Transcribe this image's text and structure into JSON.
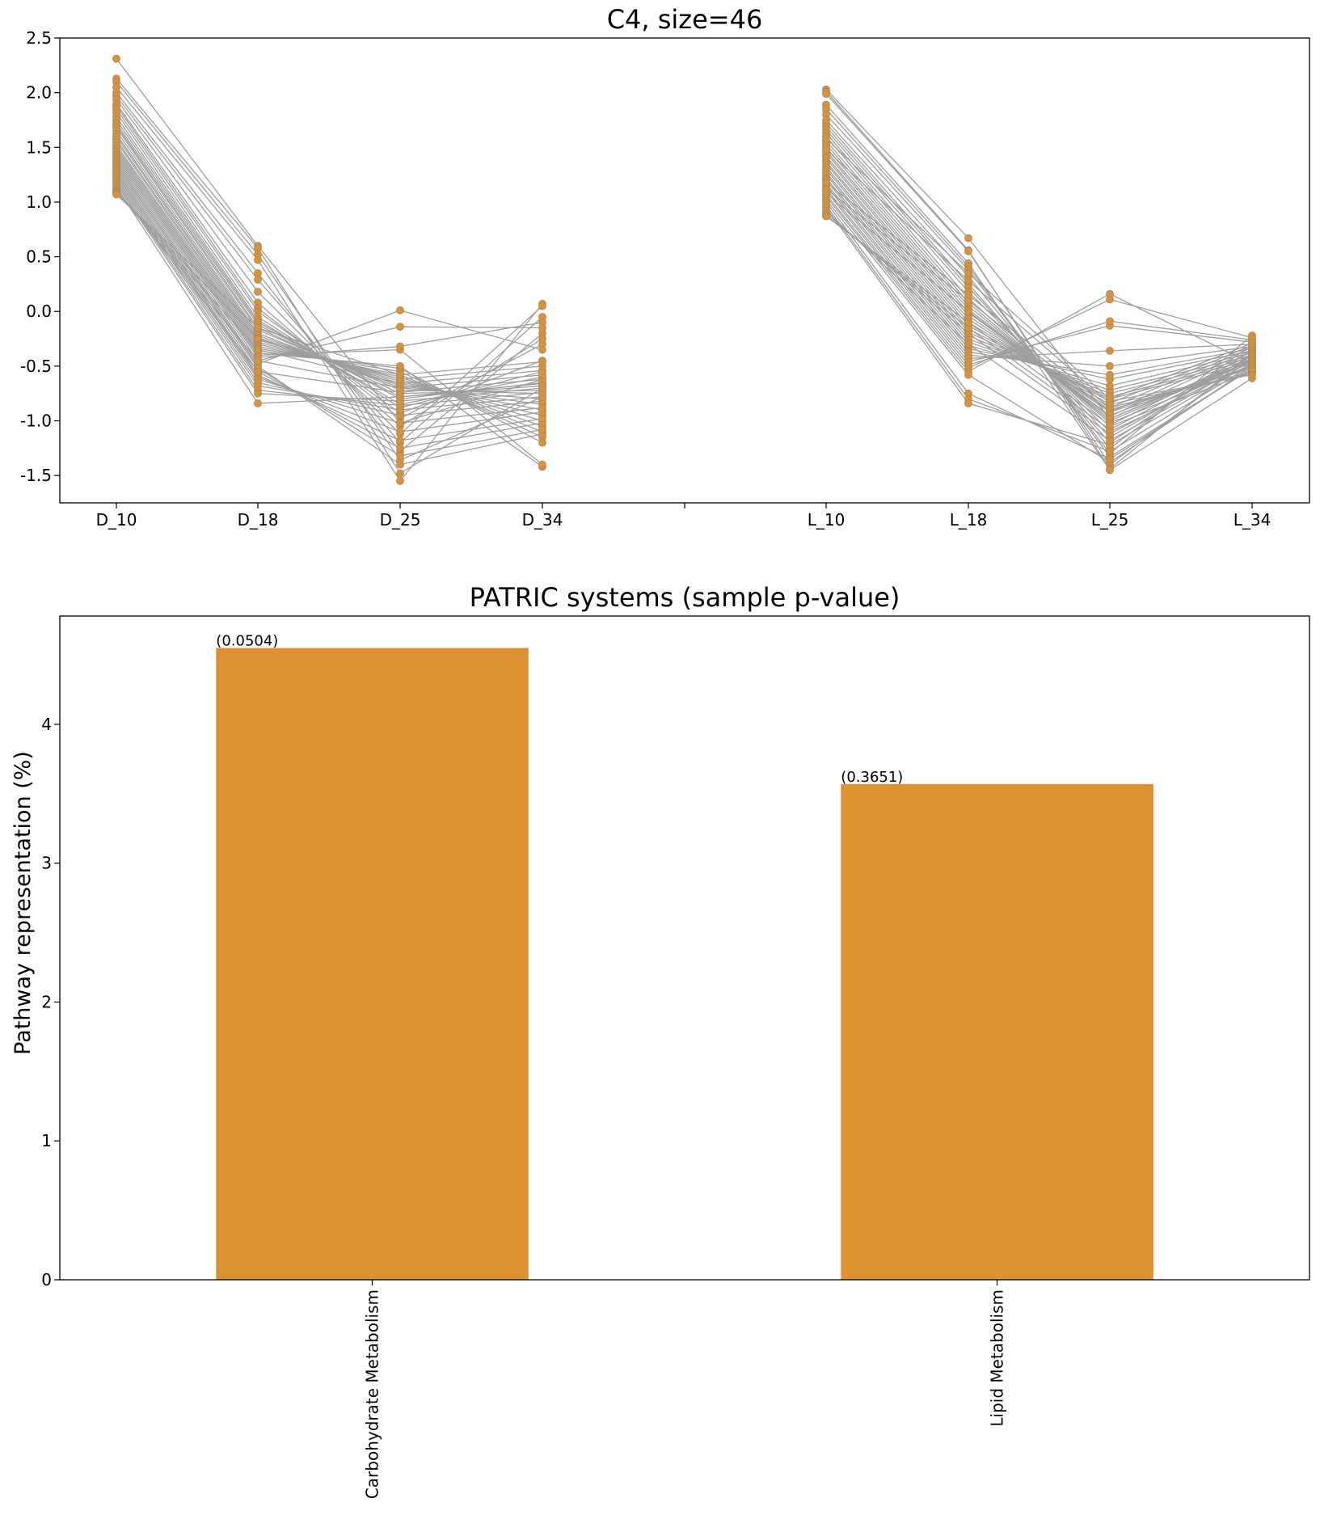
{
  "figure": {
    "colors": {
      "marker": "#dc9230",
      "line": "#9e9e9e",
      "bar": "#dc9230",
      "axes": "#000000"
    }
  },
  "chart_data": [
    {
      "type": "line",
      "title": "C4, size=46",
      "xlabel": "",
      "ylabel": "",
      "categories": [
        "D_10",
        "D_18",
        "D_25",
        "D_34",
        "",
        "L_10",
        "L_18",
        "L_25",
        "L_34"
      ],
      "yticks": [
        "2.5",
        "2.0",
        "1.5",
        "1.0",
        "0.5",
        "0.0",
        "-0.5",
        "-1.0",
        "-1.5"
      ],
      "ylim": [
        -1.75,
        2.5
      ],
      "grid": false,
      "legend": "none",
      "series": [
        {
          "values": [
            2.31,
            0.6,
            -1.02,
            -0.62,
            null,
            2.03,
            0.67,
            -0.98,
            -0.45
          ]
        },
        {
          "values": [
            2.13,
            0.58,
            -1.48,
            -0.7,
            null,
            2.01,
            0.56,
            -1.44,
            -0.38
          ]
        },
        {
          "values": [
            2.1,
            0.52,
            -1.36,
            -0.78,
            null,
            1.99,
            0.55,
            -1.4,
            -0.42
          ]
        },
        {
          "values": [
            2.05,
            0.47,
            -1.55,
            0.07,
            null,
            1.89,
            0.44,
            -1.45,
            -0.61
          ]
        },
        {
          "values": [
            2.0,
            0.35,
            -1.28,
            -0.2,
            null,
            1.85,
            0.41,
            -1.33,
            -0.52
          ]
        },
        {
          "values": [
            1.97,
            0.29,
            -1.2,
            -0.05,
            null,
            1.8,
            0.38,
            -1.3,
            -0.22
          ]
        },
        {
          "values": [
            1.94,
            0.18,
            -1.12,
            0.05,
            null,
            1.75,
            0.32,
            -1.25,
            -0.3
          ]
        },
        {
          "values": [
            1.9,
            0.08,
            -1.05,
            -0.25,
            null,
            1.72,
            0.25,
            -1.2,
            -0.35
          ]
        },
        {
          "values": [
            1.88,
            0.03,
            -0.98,
            -0.3,
            null,
            1.69,
            0.22,
            -1.15,
            -0.4
          ]
        },
        {
          "values": [
            1.85,
            0.0,
            -0.93,
            -0.45,
            null,
            1.66,
            0.18,
            -1.1,
            -0.48
          ]
        },
        {
          "values": [
            1.82,
            -0.05,
            -0.88,
            -0.55,
            null,
            1.63,
            0.12,
            -1.05,
            -0.55
          ]
        },
        {
          "values": [
            1.78,
            -0.08,
            -0.85,
            -0.6,
            null,
            1.6,
            0.08,
            -1.02,
            -0.5
          ]
        },
        {
          "values": [
            1.75,
            -0.1,
            -0.8,
            -0.65,
            null,
            1.56,
            0.05,
            -1.0,
            -0.45
          ]
        },
        {
          "values": [
            1.72,
            -0.12,
            -0.78,
            -0.68,
            null,
            1.53,
            0.02,
            -0.98,
            -0.43
          ]
        },
        {
          "values": [
            1.7,
            -0.15,
            -0.75,
            -0.72,
            null,
            1.5,
            -0.01,
            -0.95,
            -0.47
          ]
        },
        {
          "values": [
            1.68,
            -0.17,
            -0.72,
            -0.75,
            null,
            1.47,
            -0.04,
            -0.92,
            -0.5
          ]
        },
        {
          "values": [
            1.65,
            -0.2,
            -0.7,
            -0.8,
            null,
            1.45,
            -0.07,
            -0.9,
            -0.52
          ]
        },
        {
          "values": [
            1.62,
            -0.22,
            -0.68,
            -0.85,
            null,
            1.42,
            -0.1,
            -0.88,
            -0.55
          ]
        },
        {
          "values": [
            1.6,
            -0.24,
            -0.66,
            -0.9,
            null,
            1.4,
            -0.13,
            -0.85,
            -0.57
          ]
        },
        {
          "values": [
            1.57,
            -0.26,
            -0.64,
            -0.95,
            null,
            1.37,
            -0.16,
            -0.82,
            -0.58
          ]
        },
        {
          "values": [
            1.55,
            -0.28,
            -0.62,
            -1.0,
            null,
            1.35,
            -0.19,
            -0.8,
            -0.46
          ]
        },
        {
          "values": [
            1.52,
            -0.3,
            -0.6,
            -1.05,
            null,
            1.32,
            -0.22,
            -0.78,
            -0.44
          ]
        },
        {
          "values": [
            1.5,
            -0.32,
            -0.58,
            -1.1,
            null,
            1.3,
            -0.25,
            -0.75,
            -0.42
          ]
        },
        {
          "values": [
            1.48,
            -0.34,
            -0.55,
            -1.15,
            null,
            1.27,
            -0.28,
            -0.72,
            -0.4
          ]
        },
        {
          "values": [
            1.46,
            -0.36,
            -0.52,
            -1.2,
            null,
            1.25,
            -0.31,
            -0.68,
            -0.38
          ]
        },
        {
          "values": [
            1.44,
            -0.38,
            -0.5,
            -1.42,
            null,
            1.22,
            -0.34,
            -0.62,
            -0.36
          ]
        },
        {
          "values": [
            1.42,
            -0.4,
            -0.35,
            -1.4,
            null,
            1.2,
            -0.37,
            -0.58,
            -0.34
          ]
        },
        {
          "values": [
            1.4,
            -0.42,
            -0.32,
            -0.1,
            null,
            1.17,
            -0.4,
            -0.5,
            -0.32
          ]
        },
        {
          "values": [
            1.38,
            -0.45,
            -0.14,
            -0.15,
            null,
            1.15,
            -0.43,
            -0.36,
            -0.3
          ]
        },
        {
          "values": [
            1.36,
            -0.48,
            0.01,
            -0.35,
            null,
            1.12,
            -0.46,
            -0.13,
            -0.28
          ]
        },
        {
          "values": [
            1.34,
            -0.5,
            -1.4,
            -1.12,
            null,
            1.1,
            -0.49,
            -0.09,
            -0.26
          ]
        },
        {
          "values": [
            1.32,
            -0.52,
            -1.32,
            -1.08,
            null,
            1.07,
            -0.52,
            0.11,
            -0.24
          ]
        },
        {
          "values": [
            1.3,
            -0.55,
            -1.25,
            -1.02,
            null,
            1.05,
            -0.55,
            0.16,
            -0.48
          ]
        },
        {
          "values": [
            1.28,
            -0.58,
            -1.18,
            -0.98,
            null,
            1.02,
            -0.58,
            -1.38,
            -0.5
          ]
        },
        {
          "values": [
            1.26,
            -0.6,
            -1.1,
            -0.92,
            null,
            1.0,
            -0.75,
            -1.35,
            -0.52
          ]
        },
        {
          "values": [
            1.24,
            -0.62,
            -1.02,
            -0.88,
            null,
            0.97,
            -0.8,
            -1.28,
            -0.49
          ]
        },
        {
          "values": [
            1.22,
            -0.65,
            -0.95,
            -0.82,
            null,
            0.95,
            -0.84,
            -1.22,
            -0.47
          ]
        },
        {
          "values": [
            1.2,
            -0.68,
            -0.9,
            -0.78,
            null,
            0.92,
            -0.3,
            -1.18,
            -0.45
          ]
        },
        {
          "values": [
            1.18,
            -0.72,
            -0.86,
            -0.74,
            null,
            0.9,
            -0.2,
            -1.12,
            -0.43
          ]
        },
        {
          "values": [
            1.16,
            -0.75,
            -0.82,
            -0.7,
            null,
            0.88,
            -0.15,
            -1.08,
            -0.41
          ]
        },
        {
          "values": [
            1.14,
            -0.84,
            -0.78,
            -0.66,
            null,
            0.87,
            -0.1,
            -1.04,
            -0.39
          ]
        },
        {
          "values": [
            1.12,
            -0.55,
            -0.74,
            -0.62,
            null,
            1.08,
            0.0,
            -0.96,
            -0.37
          ]
        },
        {
          "values": [
            1.1,
            -0.45,
            -0.7,
            -0.58,
            null,
            1.12,
            0.1,
            -0.92,
            -0.35
          ]
        },
        {
          "values": [
            1.09,
            -0.35,
            -0.66,
            -0.54,
            null,
            1.18,
            0.15,
            -0.88,
            -0.33
          ]
        },
        {
          "values": [
            1.08,
            -0.25,
            -0.62,
            -0.5,
            null,
            1.48,
            0.28,
            -0.84,
            -0.31
          ]
        },
        {
          "values": [
            1.07,
            -0.15,
            -0.58,
            -0.46,
            null,
            1.58,
            0.35,
            -0.8,
            -0.29
          ]
        }
      ]
    },
    {
      "type": "bar",
      "title": "PATRIC systems (sample p-value)",
      "xlabel": "",
      "ylabel": "Pathway representation (%)",
      "categories": [
        "Carbohydrate Metabolism",
        "Lipid Metabolism"
      ],
      "values": [
        4.55,
        3.57
      ],
      "data_labels": [
        "(0.0504)",
        "(0.3651)"
      ],
      "yticks": [
        "0",
        "1",
        "2",
        "3",
        "4"
      ],
      "ylim": [
        0,
        4.78
      ],
      "grid": false,
      "legend": "none"
    }
  ]
}
